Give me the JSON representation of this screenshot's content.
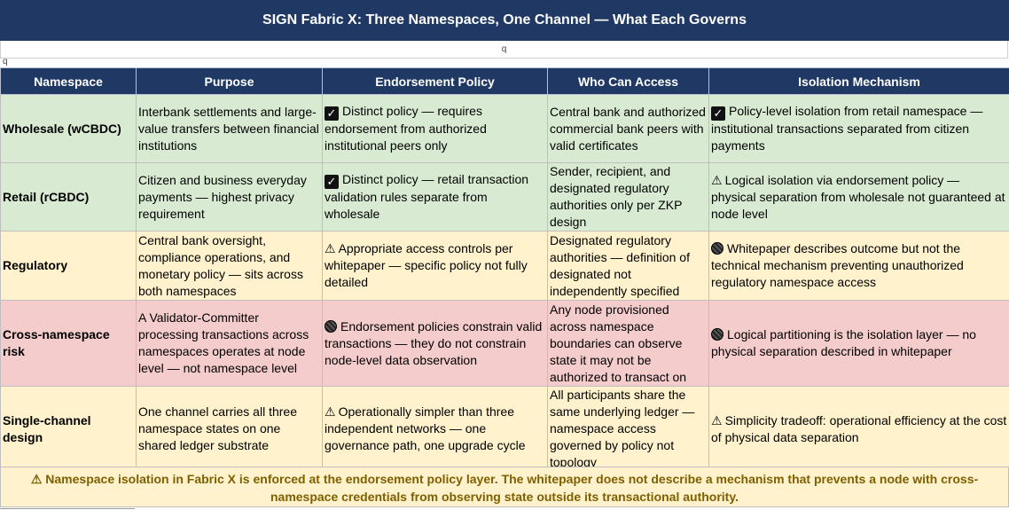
{
  "title": "SIGN Fabric X: Three Namespaces, One Channel — What Each Governs",
  "q_row": "q",
  "q_small": "q",
  "headers": [
    "Namespace",
    "Purpose",
    "Endorsement Policy",
    "Who Can Access",
    "Isolation Mechanism"
  ],
  "rows": [
    {
      "namespace": "Wholesale (wCBDC)",
      "purpose": "Interbank settlements and large-value transfers between financial institutions",
      "endorsement": "Distinct policy — requires endorsement from authorized institutional peers only",
      "endorsement_icon": "check-icon",
      "access": "Central bank and authorized commercial bank peers with valid certificates",
      "isolation": "Policy-level isolation from retail namespace — institutional transactions separated from citizen payments",
      "isolation_icon": "check-icon"
    },
    {
      "namespace": "Retail (rCBDC)",
      "purpose": "Citizen and business everyday payments — highest privacy requirement",
      "endorsement": "Distinct policy — retail transaction validation rules separate from wholesale",
      "endorsement_icon": "check-icon",
      "access": "Sender, recipient, and designated regulatory authorities only per ZKP design",
      "isolation": "Logical isolation via endorsement policy — physical separation from wholesale not guaranteed at node level",
      "isolation_icon": "warning-icon"
    },
    {
      "namespace": "Regulatory",
      "purpose": "Central bank oversight, compliance operations, and monetary policy — sits across both namespaces",
      "endorsement": "Appropriate access controls per whitepaper — specific policy not fully detailed",
      "endorsement_icon": "warning-icon",
      "access": "Designated regulatory authorities — definition of designated not independently specified",
      "isolation": "Whitepaper describes outcome but not the technical mechanism preventing unauthorized regulatory namespace access",
      "isolation_icon": "circle-icon"
    },
    {
      "namespace": "Cross-namespace risk",
      "purpose": "A Validator-Committer processing transactions across namespaces operates at node level — not namespace level",
      "endorsement": "Endorsement policies constrain valid transactions — they do not constrain node-level data observation",
      "endorsement_icon": "circle-icon",
      "access": "Any node provisioned across namespace boundaries can observe state it may not be authorized to transact on",
      "isolation": "Logical partitioning is the isolation layer — no physical separation described in whitepaper",
      "isolation_icon": "circle-icon"
    },
    {
      "namespace": "Single-channel design",
      "purpose": "One channel carries all three namespace states on one shared ledger substrate",
      "endorsement": "Operationally simpler than three independent networks — one governance path, one upgrade cycle",
      "endorsement_icon": "warning-icon",
      "access": "All participants share the same underlying ledger — namespace access governed by policy not topology",
      "isolation": "Simplicity tradeoff: operational efficiency at the cost of physical data separation",
      "isolation_icon": "warning-icon"
    }
  ],
  "footer": "⚠ Namespace isolation in Fabric X is enforced at the endorsement policy layer. The whitepaper does not describe a mechanism that prevents a node with cross-namespace credentials from observing state outside its transactional authority."
}
